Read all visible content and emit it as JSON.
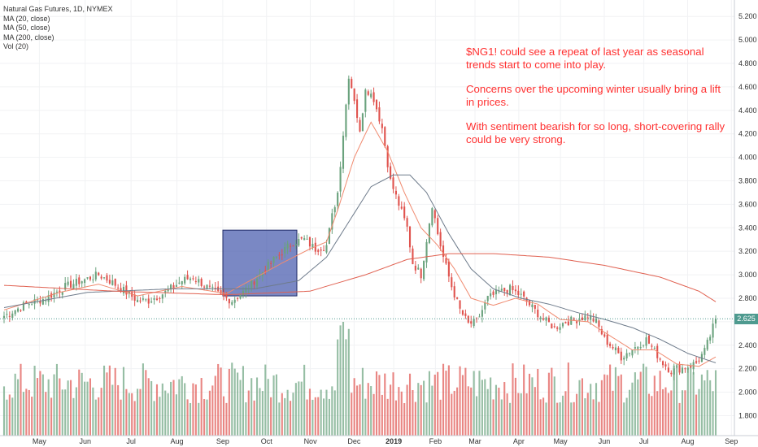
{
  "header": {
    "symbol_line": "Natural Gas Futures, 1D, NYMEX",
    "indicators": [
      "MA (20, close)",
      "MA (50, close)",
      "MA (200, close)",
      "Vol (20)"
    ]
  },
  "annotation": {
    "paragraphs": [
      "$NG1! could see a repeat of last year as seasonal trends start to come into play.",
      "Concerns over the upcoming winter usually bring a lift in prices.",
      "With sentiment bearish for so long, short-covering rally could be very strong."
    ]
  },
  "current_price_label": "2.625",
  "colors": {
    "up": "#6aa27d",
    "down": "#e0534e",
    "ma20": "#f08a6f",
    "ma50": "#6e7b8b",
    "ma200": "#e06050",
    "vol_up": "#6aa27d",
    "vol_down": "#e0534e",
    "highlight_box": "#3b4fa8",
    "price_line": "#4e9a8f"
  },
  "chart_data": {
    "type": "candlestick",
    "title": "Natural Gas Futures, 1D, NYMEX",
    "ylim": [
      1.72,
      5.25
    ],
    "y_ticks": [
      "5.200",
      "5.000",
      "4.800",
      "4.600",
      "4.400",
      "4.200",
      "4.000",
      "3.800",
      "3.600",
      "3.400",
      "3.200",
      "3.000",
      "2.800",
      "2.600",
      "2.400",
      "2.200",
      "2.000",
      "1.800"
    ],
    "x_ticks": [
      "May",
      "Jun",
      "Jul",
      "Aug",
      "Sep",
      "Oct",
      "Nov",
      "Dec",
      "2019",
      "Feb",
      "Mar",
      "Apr",
      "May",
      "Jun",
      "Jul",
      "Aug",
      "Sep"
    ],
    "last_price": 2.625,
    "highlight_range": {
      "start": "Sep",
      "end": "Nov",
      "price_low": 2.82,
      "price_high": 3.38
    },
    "close_path": [
      [
        0,
        2.65
      ],
      [
        8,
        2.75
      ],
      [
        15,
        2.8
      ],
      [
        22,
        2.9
      ],
      [
        28,
        2.95
      ],
      [
        34,
        3.0
      ],
      [
        38,
        2.95
      ],
      [
        44,
        2.85
      ],
      [
        48,
        2.78
      ],
      [
        52,
        2.78
      ],
      [
        58,
        2.85
      ],
      [
        64,
        2.95
      ],
      [
        68,
        2.98
      ],
      [
        74,
        2.88
      ],
      [
        78,
        2.82
      ],
      [
        82,
        2.78
      ],
      [
        86,
        2.85
      ],
      [
        92,
        3.0
      ],
      [
        98,
        3.15
      ],
      [
        104,
        3.28
      ],
      [
        108,
        3.3
      ],
      [
        112,
        3.22
      ],
      [
        116,
        3.25
      ],
      [
        118,
        3.5
      ],
      [
        120,
        3.7
      ],
      [
        122,
        4.2
      ],
      [
        124,
        4.7
      ],
      [
        126,
        4.5
      ],
      [
        128,
        4.2
      ],
      [
        130,
        4.6
      ],
      [
        133,
        4.5
      ],
      [
        136,
        4.25
      ],
      [
        139,
        3.8
      ],
      [
        142,
        3.6
      ],
      [
        145,
        3.4
      ],
      [
        147,
        3.1
      ],
      [
        150,
        3.0
      ],
      [
        152,
        3.3
      ],
      [
        154,
        3.6
      ],
      [
        156,
        3.35
      ],
      [
        158,
        3.15
      ],
      [
        161,
        2.9
      ],
      [
        164,
        2.7
      ],
      [
        167,
        2.58
      ],
      [
        170,
        2.6
      ],
      [
        174,
        2.8
      ],
      [
        178,
        2.85
      ],
      [
        182,
        2.88
      ],
      [
        186,
        2.82
      ],
      [
        190,
        2.72
      ],
      [
        194,
        2.62
      ],
      [
        198,
        2.55
      ],
      [
        202,
        2.6
      ],
      [
        206,
        2.62
      ],
      [
        210,
        2.65
      ],
      [
        213,
        2.6
      ],
      [
        216,
        2.45
      ],
      [
        219,
        2.38
      ],
      [
        222,
        2.3
      ],
      [
        225,
        2.35
      ],
      [
        228,
        2.4
      ],
      [
        231,
        2.45
      ],
      [
        234,
        2.35
      ],
      [
        237,
        2.25
      ],
      [
        240,
        2.18
      ],
      [
        243,
        2.2
      ],
      [
        246,
        2.22
      ],
      [
        249,
        2.25
      ],
      [
        252,
        2.35
      ],
      [
        254,
        2.48
      ],
      [
        256,
        2.625
      ]
    ],
    "ma20_path": [
      [
        0,
        2.7
      ],
      [
        20,
        2.85
      ],
      [
        34,
        2.92
      ],
      [
        48,
        2.82
      ],
      [
        64,
        2.9
      ],
      [
        80,
        2.84
      ],
      [
        100,
        3.1
      ],
      [
        110,
        3.22
      ],
      [
        116,
        3.28
      ],
      [
        120,
        3.55
      ],
      [
        126,
        4.0
      ],
      [
        132,
        4.3
      ],
      [
        138,
        4.05
      ],
      [
        144,
        3.7
      ],
      [
        150,
        3.4
      ],
      [
        156,
        3.25
      ],
      [
        162,
        3.05
      ],
      [
        168,
        2.8
      ],
      [
        176,
        2.74
      ],
      [
        184,
        2.8
      ],
      [
        192,
        2.75
      ],
      [
        200,
        2.62
      ],
      [
        210,
        2.6
      ],
      [
        218,
        2.48
      ],
      [
        226,
        2.36
      ],
      [
        234,
        2.36
      ],
      [
        242,
        2.24
      ],
      [
        250,
        2.22
      ],
      [
        256,
        2.3
      ]
    ],
    "ma50_path": [
      [
        0,
        2.72
      ],
      [
        30,
        2.85
      ],
      [
        60,
        2.88
      ],
      [
        90,
        2.88
      ],
      [
        106,
        2.95
      ],
      [
        116,
        3.15
      ],
      [
        124,
        3.45
      ],
      [
        132,
        3.75
      ],
      [
        140,
        3.85
      ],
      [
        146,
        3.85
      ],
      [
        152,
        3.7
      ],
      [
        160,
        3.35
      ],
      [
        168,
        3.05
      ],
      [
        176,
        2.88
      ],
      [
        186,
        2.8
      ],
      [
        196,
        2.75
      ],
      [
        206,
        2.68
      ],
      [
        216,
        2.62
      ],
      [
        226,
        2.55
      ],
      [
        236,
        2.45
      ],
      [
        246,
        2.33
      ],
      [
        256,
        2.25
      ]
    ],
    "ma200_path": [
      [
        0,
        2.91
      ],
      [
        40,
        2.86
      ],
      [
        80,
        2.83
      ],
      [
        110,
        2.86
      ],
      [
        130,
        3.0
      ],
      [
        145,
        3.13
      ],
      [
        160,
        3.18
      ],
      [
        176,
        3.18
      ],
      [
        196,
        3.15
      ],
      [
        216,
        3.08
      ],
      [
        236,
        2.98
      ],
      [
        250,
        2.86
      ],
      [
        256,
        2.77
      ]
    ]
  }
}
